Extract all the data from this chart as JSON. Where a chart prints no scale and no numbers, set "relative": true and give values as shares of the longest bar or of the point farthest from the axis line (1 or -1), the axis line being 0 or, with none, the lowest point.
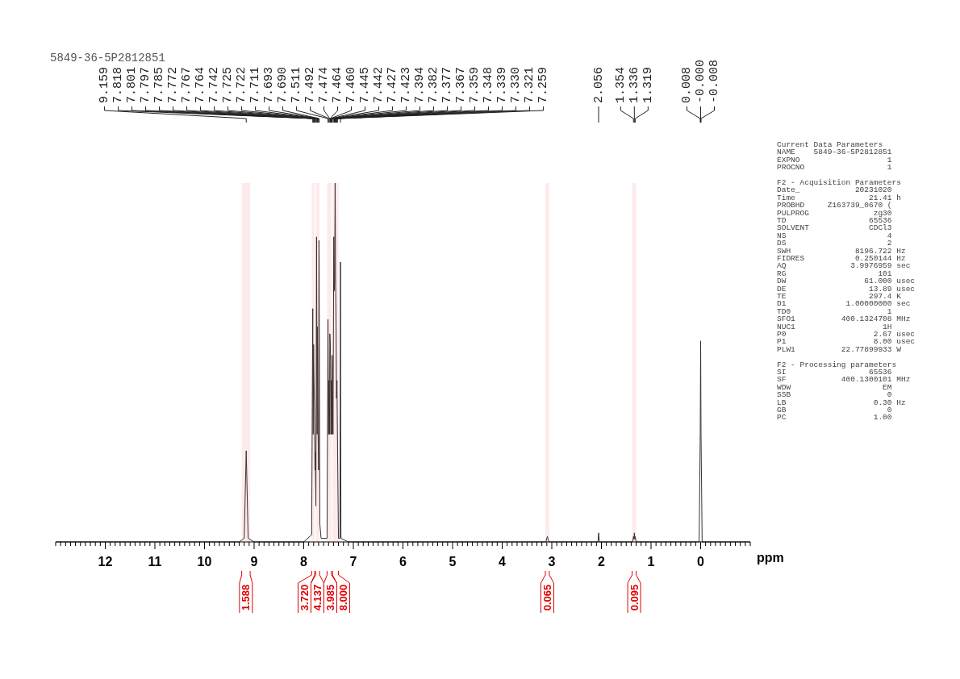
{
  "chart_data": {
    "type": "line",
    "relative": true,
    "xlabel": "ppm",
    "xlim": [
      13,
      -1
    ],
    "xticks": [
      12,
      11,
      10,
      9,
      8,
      7,
      6,
      5,
      4,
      3,
      2,
      1,
      0,
      {
        "value": 13,
        "label": null
      },
      {
        "value": 12.9,
        "label": null
      },
      {
        "value": 12.8,
        "label": null
      },
      {
        "value": 12.7,
        "label": null
      },
      {
        "value": 12.6,
        "label": null
      },
      {
        "value": 12.5,
        "label": null
      },
      {
        "value": 12.4,
        "label": null
      },
      {
        "value": 12.3,
        "label": null
      },
      {
        "value": 12.2,
        "label": null
      },
      {
        "value": 12.1,
        "label": null
      },
      {
        "value": 11.9,
        "label": null
      },
      {
        "value": 11.8,
        "label": null
      },
      {
        "value": 11.7,
        "label": null
      },
      {
        "value": 11.6,
        "label": null
      },
      {
        "value": 11.5,
        "label": null
      },
      {
        "value": 11.4,
        "label": null
      },
      {
        "value": 11.3,
        "label": null
      },
      {
        "value": 11.2,
        "label": null
      },
      {
        "value": 11.1,
        "label": null
      },
      {
        "value": 10.9,
        "label": null
      },
      {
        "value": 10.8,
        "label": null
      },
      {
        "value": 10.7,
        "label": null
      },
      {
        "value": 10.6,
        "label": null
      },
      {
        "value": 10.5,
        "label": null
      },
      {
        "value": 10.4,
        "label": null
      },
      {
        "value": 10.3,
        "label": null
      },
      {
        "value": 10.2,
        "label": null
      },
      {
        "value": 10.1,
        "label": null
      },
      {
        "value": 9.9,
        "label": null
      },
      {
        "value": 9.8,
        "label": null
      },
      {
        "value": 9.7,
        "label": null
      },
      {
        "value": 9.6,
        "label": null
      },
      {
        "value": 9.5,
        "label": null
      },
      {
        "value": 9.4,
        "label": null
      },
      {
        "value": 9.3,
        "label": null
      },
      {
        "value": 9.2,
        "label": null
      },
      {
        "value": 9.1,
        "label": null
      },
      {
        "value": 8.9,
        "label": null
      },
      {
        "value": 8.8,
        "label": null
      },
      {
        "value": 8.7,
        "label": null
      },
      {
        "value": 8.6,
        "label": null
      },
      {
        "value": 8.5,
        "label": null
      },
      {
        "value": 8.4,
        "label": null
      },
      {
        "value": 8.3,
        "label": null
      },
      {
        "value": 8.2,
        "label": null
      },
      {
        "value": 8.1,
        "label": null
      },
      {
        "value": 7.9,
        "label": null
      },
      {
        "value": 7.8,
        "label": null
      },
      {
        "value": 7.7,
        "label": null
      },
      {
        "value": 7.6,
        "label": null
      },
      {
        "value": 7.5,
        "label": null
      },
      {
        "value": 7.4,
        "label": null
      },
      {
        "value": 7.3,
        "label": null
      },
      {
        "value": 7.2,
        "label": null
      },
      {
        "value": 7.1,
        "label": null
      },
      {
        "value": 6.9,
        "label": null
      },
      {
        "value": 6.8,
        "label": null
      },
      {
        "value": 6.7,
        "label": null
      },
      {
        "value": 6.6,
        "label": null
      },
      {
        "value": 6.5,
        "label": null
      },
      {
        "value": 6.4,
        "label": null
      },
      {
        "value": 6.3,
        "label": null
      },
      {
        "value": 6.2,
        "label": null
      },
      {
        "value": 6.1,
        "label": null
      },
      {
        "value": 5.9,
        "label": null
      },
      {
        "value": 5.8,
        "label": null
      },
      {
        "value": 5.7,
        "label": null
      },
      {
        "value": 5.6,
        "label": null
      },
      {
        "value": 5.5,
        "label": null
      },
      {
        "value": 5.4,
        "label": null
      },
      {
        "value": 5.3,
        "label": null
      },
      {
        "value": 5.2,
        "label": null
      },
      {
        "value": 5.1,
        "label": null
      },
      {
        "value": 4.9,
        "label": null
      },
      {
        "value": 4.8,
        "label": null
      },
      {
        "value": 4.7,
        "label": null
      },
      {
        "value": 4.6,
        "label": null
      },
      {
        "value": 4.5,
        "label": null
      },
      {
        "value": 4.4,
        "label": null
      },
      {
        "value": 4.3,
        "label": null
      },
      {
        "value": 4.2,
        "label": null
      },
      {
        "value": 4.1,
        "label": null
      },
      {
        "value": 3.9,
        "label": null
      },
      {
        "value": 3.8,
        "label": null
      },
      {
        "value": 3.7,
        "label": null
      },
      {
        "value": 3.6,
        "label": null
      },
      {
        "value": 3.5,
        "label": null
      },
      {
        "value": 3.4,
        "label": null
      },
      {
        "value": 3.3,
        "label": null
      },
      {
        "value": 3.2,
        "label": null
      },
      {
        "value": 3.1,
        "label": null
      },
      {
        "value": 2.9,
        "label": null
      },
      {
        "value": 2.8,
        "label": null
      },
      {
        "value": 2.7,
        "label": null
      },
      {
        "value": 2.6,
        "label": null
      },
      {
        "value": 2.5,
        "label": null
      },
      {
        "value": 2.4,
        "label": null
      },
      {
        "value": 2.3,
        "label": null
      },
      {
        "value": 2.2,
        "label": null
      },
      {
        "value": 2.1,
        "label": null
      },
      {
        "value": 1.9,
        "label": null
      },
      {
        "value": 1.8,
        "label": null
      },
      {
        "value": 1.7,
        "label": null
      },
      {
        "value": 1.6,
        "label": null
      },
      {
        "value": 1.5,
        "label": null
      },
      {
        "value": 1.4,
        "label": null
      },
      {
        "value": 1.3,
        "label": null
      },
      {
        "value": 1.2,
        "label": null
      },
      {
        "value": 1.1,
        "label": null
      },
      {
        "value": 0.9,
        "label": null
      },
      {
        "value": 0.8,
        "label": null
      },
      {
        "value": 0.7,
        "label": null
      },
      {
        "value": 0.6,
        "label": null
      },
      {
        "value": 0.5,
        "label": null
      },
      {
        "value": 0.4,
        "label": null
      },
      {
        "value": 0.3,
        "label": null
      },
      {
        "value": 0.2,
        "label": null
      },
      {
        "value": 0.1,
        "label": null
      },
      {
        "value": -0.1,
        "label": null
      },
      {
        "value": -0.2,
        "label": null
      },
      {
        "value": -0.3,
        "label": null
      },
      {
        "value": -0.4,
        "label": null
      },
      {
        "value": -0.5,
        "label": null
      },
      {
        "value": -0.6,
        "label": null
      },
      {
        "value": -0.7,
        "label": null
      },
      {
        "value": -0.8,
        "label": null
      },
      {
        "value": -0.9,
        "label": null
      },
      {
        "value": -1,
        "label": null
      }
    ],
    "bands": [
      {
        "axis": "x",
        "from": 9.25,
        "to": 9.08,
        "label": "1.588",
        "color": "#e00000"
      },
      {
        "axis": "x",
        "from": 7.84,
        "to": 7.78,
        "label": "3.720",
        "color": "#e00000"
      },
      {
        "axis": "x",
        "from": 7.76,
        "to": 7.68,
        "label": "4.137",
        "color": "#e00000"
      },
      {
        "axis": "x",
        "from": 7.53,
        "to": 7.44,
        "label": "3.985",
        "color": "#e00000"
      },
      {
        "axis": "x",
        "from": 7.42,
        "to": 7.3,
        "label": "8.000",
        "color": "#e00000"
      },
      {
        "axis": "x",
        "from": 3.13,
        "to": 3.05,
        "label": "0.065",
        "color": "#e00000"
      },
      {
        "axis": "x",
        "from": 1.38,
        "to": 1.3,
        "label": "0.095",
        "color": "#e00000"
      }
    ],
    "series": [
      {
        "color": "#333333",
        "x": [
          13,
          9.3,
          9.2,
          9.159,
          9.12,
          9.0,
          8.0,
          7.84,
          7.818,
          7.81,
          7.801,
          7.797,
          7.785,
          7.772,
          7.767,
          7.764,
          7.755,
          7.742,
          7.73,
          7.725,
          7.722,
          7.711,
          7.7,
          7.693,
          7.69,
          7.675,
          7.65,
          7.53,
          7.511,
          7.5,
          7.492,
          7.48,
          7.474,
          7.464,
          7.46,
          7.452,
          7.445,
          7.442,
          7.435,
          7.427,
          7.423,
          7.41,
          7.394,
          7.382,
          7.377,
          7.367,
          7.359,
          7.348,
          7.339,
          7.33,
          7.321,
          7.3,
          7.27,
          7.259,
          7.25,
          7.1,
          3.12,
          3.09,
          3.06,
          2.07,
          2.056,
          2.04,
          1.37,
          1.354,
          1.345,
          1.336,
          1.328,
          1.319,
          1.3,
          0.03,
          0.008,
          0,
          -0.008,
          -0.03,
          -1
        ],
        "values": [
          0,
          0,
          0.01,
          0.254,
          0.01,
          0,
          0,
          0.02,
          0.65,
          0.3,
          0.55,
          0.5,
          0.38,
          0.2,
          0.25,
          0.22,
          0.1,
          0.85,
          0.3,
          0.6,
          0.55,
          0.3,
          0.2,
          0.84,
          0.8,
          0.05,
          0.01,
          0.01,
          0.62,
          0.3,
          0.45,
          0.3,
          0.58,
          0.55,
          0.5,
          0.3,
          0.45,
          0.44,
          0.3,
          0.52,
          0.5,
          0.3,
          0.85,
          0.7,
          0.72,
          1,
          0.75,
          0.6,
          0.4,
          0.45,
          0.3,
          0.01,
          0.01,
          0.78,
          0.01,
          0,
          0,
          0.015,
          0,
          0,
          0.025,
          0,
          0,
          0.015,
          0.008,
          0.025,
          0.008,
          0.015,
          0,
          0,
          0.3,
          0.56,
          0.3,
          0,
          0
        ]
      }
    ],
    "annotations": [
      "5849-36-5P2812851",
      "Current Data Parameters",
      "NAME    5849-36-5P2812851",
      "EXPNO                   1",
      "PROCNO                  1",
      "F2 - Acquisition Parameters",
      "Date_            20231020",
      "Time                21.41 h",
      "PROBHD     Z163739_0670 (",
      "PULPROG              zg30",
      "TD                  65536",
      "SOLVENT             CDCl3",
      "NS                      4",
      "DS                      2",
      "SWH              8196.722 Hz",
      "FIDRES           0.250144 Hz",
      "AQ              3.9976959 sec",
      "RG                    101",
      "DW                 61.000 usec",
      "DE                  13.89 usec",
      "TE                  297.4 K",
      "D1             1.00000000 sec",
      "TD0                     1",
      "SFO1          400.1324708 MHz",
      "NUC1                   1H",
      "P0                   2.67 usec",
      "P1                   8.00 usec",
      "PLW1          22.77899933 W",
      "F2 - Processing parameters",
      "SI                  65536",
      "SF            400.1300101 MHz",
      "WDW                    EM",
      "SSB                     0",
      "LB                   0.30 Hz",
      "GB                      0",
      "PC                   1.00",
      {
        "text": "9.159",
        "x": 9.159
      },
      {
        "text": "7.818",
        "x": 7.818
      },
      {
        "text": "7.801",
        "x": 7.801
      },
      {
        "text": "7.797",
        "x": 7.797
      },
      {
        "text": "7.785",
        "x": 7.785
      },
      {
        "text": "7.772",
        "x": 7.772
      },
      {
        "text": "7.767",
        "x": 7.767
      },
      {
        "text": "7.764",
        "x": 7.764
      },
      {
        "text": "7.742",
        "x": 7.742
      },
      {
        "text": "7.725",
        "x": 7.725
      },
      {
        "text": "7.722",
        "x": 7.722
      },
      {
        "text": "7.711",
        "x": 7.711
      },
      {
        "text": "7.693",
        "x": 7.693
      },
      {
        "text": "7.690",
        "x": 7.69
      },
      {
        "text": "7.511",
        "x": 7.511
      },
      {
        "text": "7.492",
        "x": 7.492
      },
      {
        "text": "7.474",
        "x": 7.474
      },
      {
        "text": "7.464",
        "x": 7.464
      },
      {
        "text": "7.460",
        "x": 7.46
      },
      {
        "text": "7.445",
        "x": 7.445
      },
      {
        "text": "7.442",
        "x": 7.442
      },
      {
        "text": "7.427",
        "x": 7.427
      },
      {
        "text": "7.423",
        "x": 7.423
      },
      {
        "text": "7.394",
        "x": 7.394
      },
      {
        "text": "7.382",
        "x": 7.382
      },
      {
        "text": "7.377",
        "x": 7.377
      },
      {
        "text": "7.367",
        "x": 7.367
      },
      {
        "text": "7.359",
        "x": 7.359
      },
      {
        "text": "7.348",
        "x": 7.348
      },
      {
        "text": "7.339",
        "x": 7.339
      },
      {
        "text": "7.330",
        "x": 7.33
      },
      {
        "text": "7.321",
        "x": 7.321
      },
      {
        "text": "7.259",
        "x": 7.259
      },
      {
        "text": "2.056",
        "x": 2.056
      },
      {
        "text": "1.354",
        "x": 1.354
      },
      {
        "text": "1.336",
        "x": 1.336
      },
      {
        "text": "1.319",
        "x": 1.319
      },
      {
        "text": "0.008",
        "x": 0.008
      },
      {
        "text": "-0.000",
        "x": 0
      },
      {
        "text": "-0.008",
        "x": -0.008
      }
    ]
  }
}
